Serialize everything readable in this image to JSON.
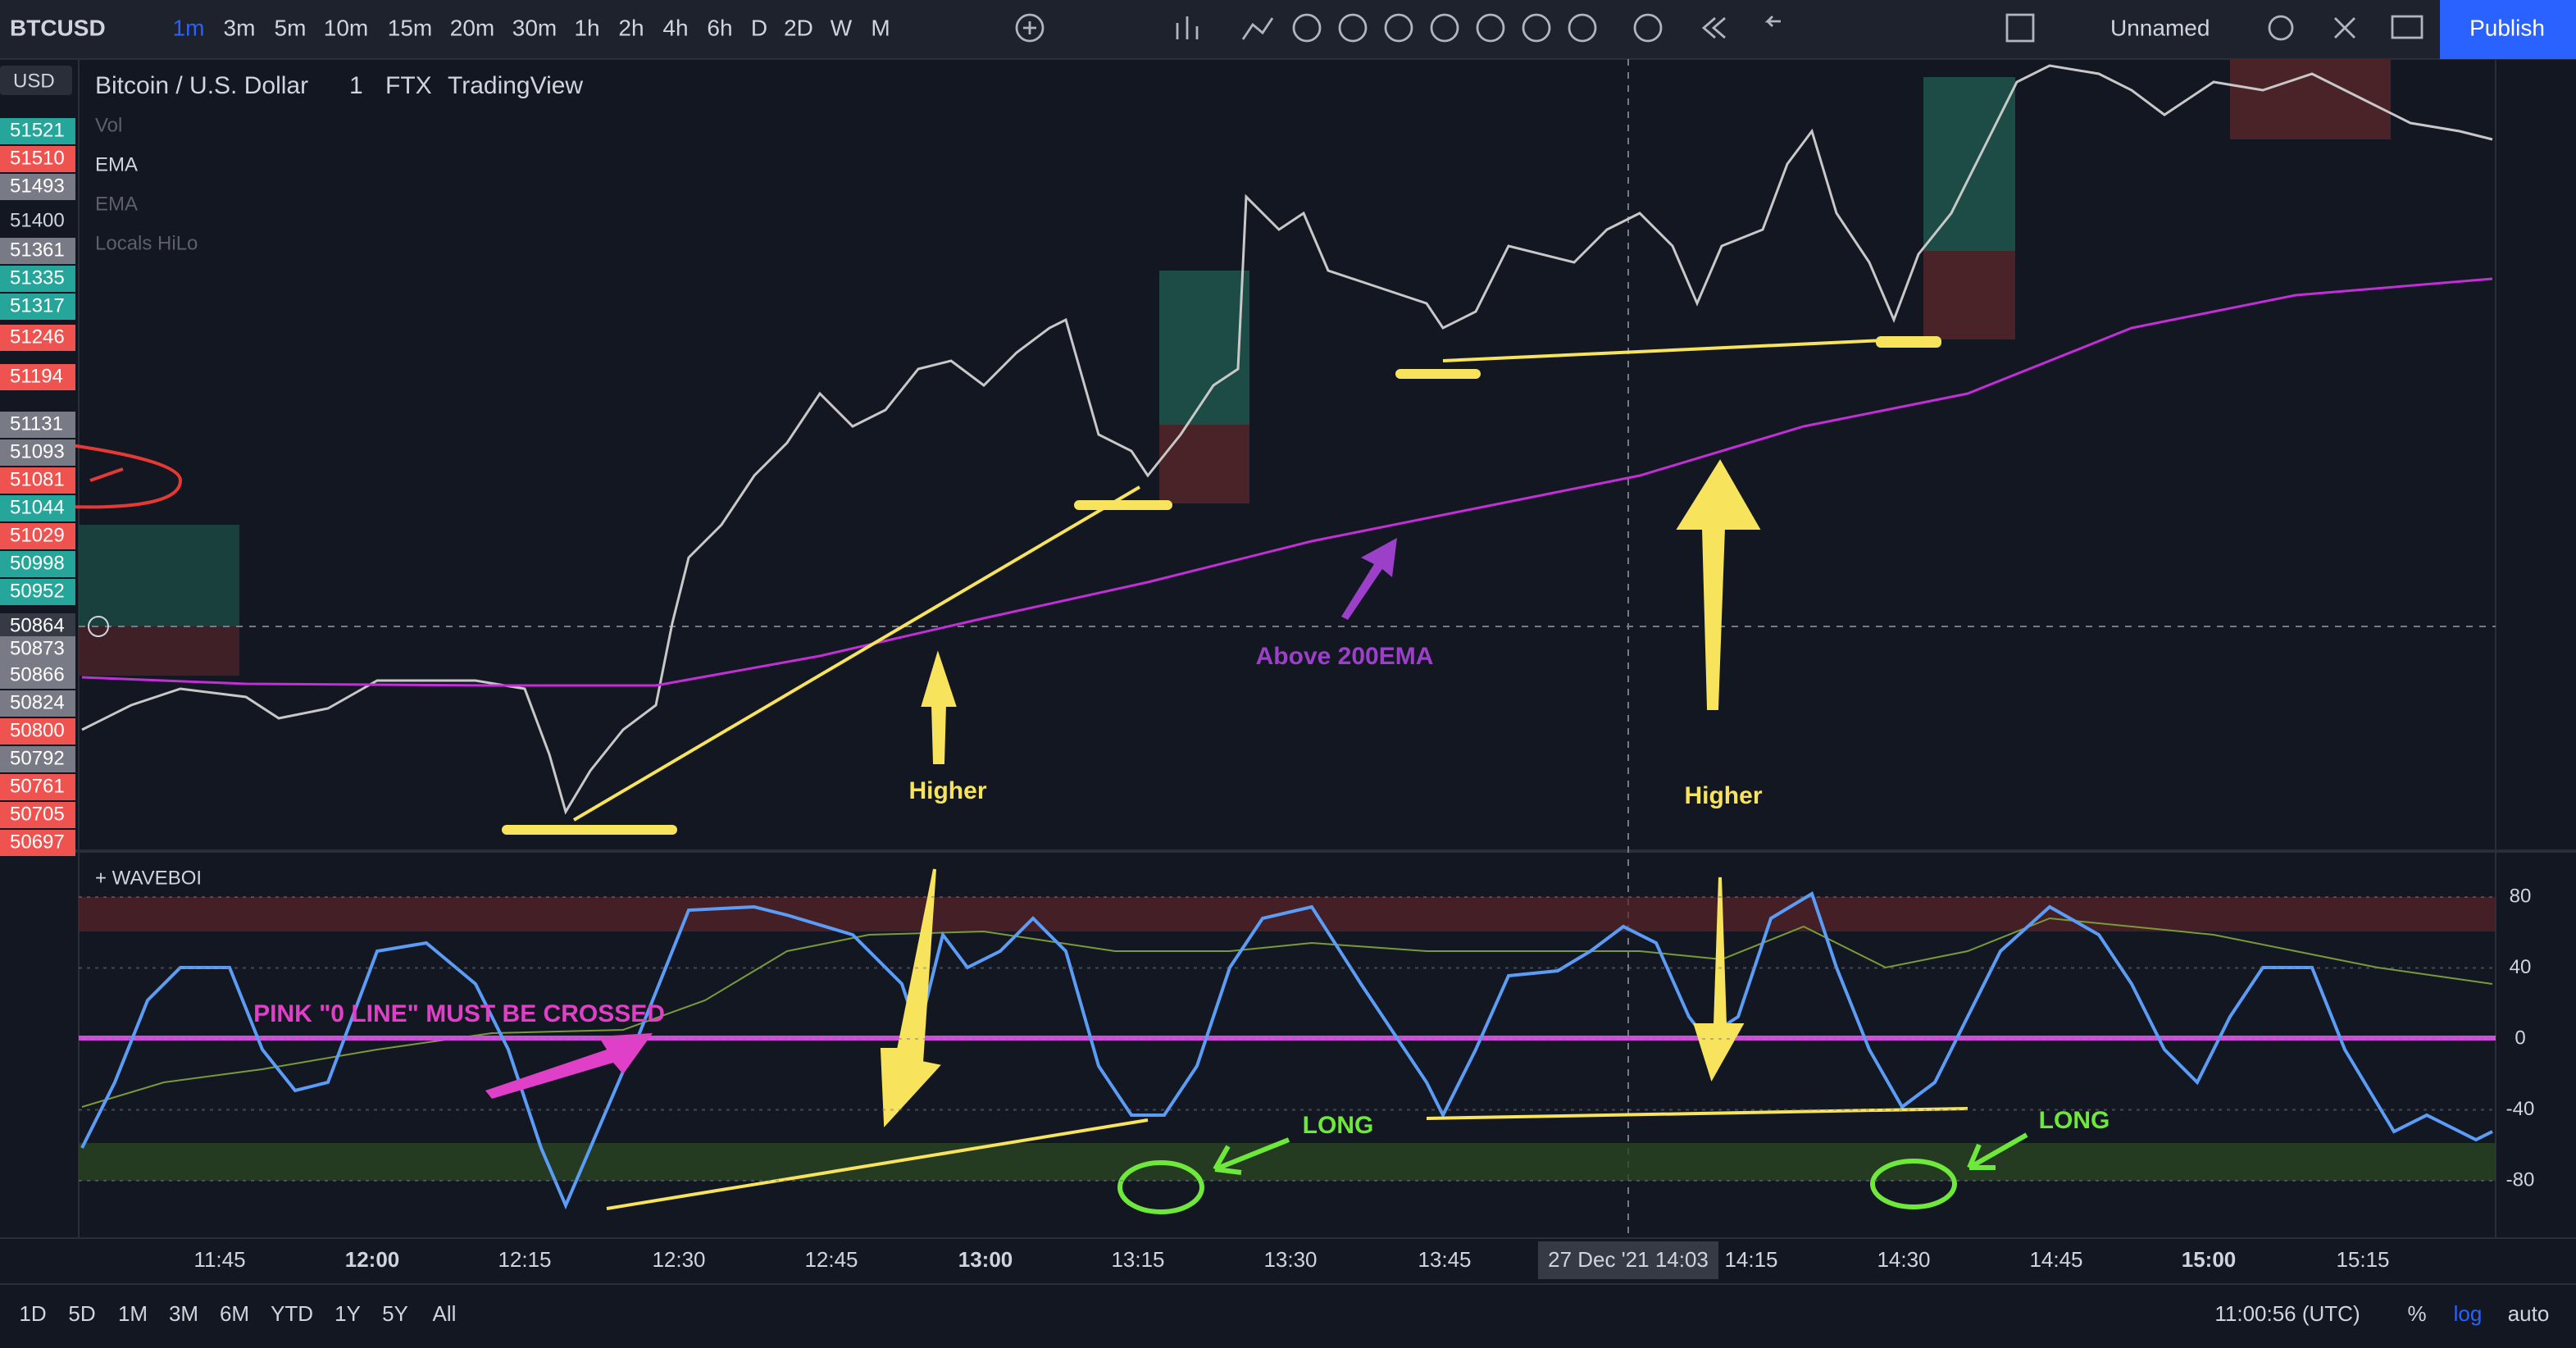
{
  "toolbar": {
    "symbol": "BTCUSD",
    "intervals": [
      "1m",
      "3m",
      "5m",
      "10m",
      "15m",
      "20m",
      "30m",
      "1h",
      "2h",
      "4h",
      "6h",
      "D",
      "2D",
      "W",
      "M"
    ],
    "layout_name": "Unnamed",
    "publish": "Publish"
  },
  "legend": {
    "title": "Bitcoin / U.S. Dollar",
    "interval": "1",
    "exchange": "FTX",
    "source": "TradingView",
    "indicators": [
      "Vol",
      "EMA",
      "EMA",
      "Locals HiLo"
    ]
  },
  "price_scale": {
    "currency": "USD",
    "labels": [
      {
        "text": "51521",
        "color": "#26a69a"
      },
      {
        "text": "51510",
        "color": "#ef5350"
      },
      {
        "text": "51493",
        "color": "#787b86"
      },
      {
        "text": "51400",
        "color": "#131722"
      },
      {
        "text": "51361",
        "color": "#787b86"
      },
      {
        "text": "51335",
        "color": "#26a69a"
      },
      {
        "text": "51317",
        "color": "#26a69a"
      },
      {
        "text": "51246",
        "color": "#ef5350"
      },
      {
        "text": "51194",
        "color": "#ef5350"
      },
      {
        "text": "51131",
        "color": "#787b86"
      },
      {
        "text": "51093",
        "color": "#787b86"
      },
      {
        "text": "51081",
        "color": "#ef5350"
      },
      {
        "text": "51044",
        "color": "#26a69a"
      },
      {
        "text": "51029",
        "color": "#ef5350"
      },
      {
        "text": "50998",
        "color": "#26a69a"
      },
      {
        "text": "50952",
        "color": "#26a69a"
      },
      {
        "text": "50864",
        "color": "#363a45"
      },
      {
        "text": "50873",
        "color": "#787b86"
      },
      {
        "text": "50866",
        "color": "#787b86"
      },
      {
        "text": "50824",
        "color": "#787b86"
      },
      {
        "text": "50800",
        "color": "#ef5350"
      },
      {
        "text": "50792",
        "color": "#787b86"
      },
      {
        "text": "50761",
        "color": "#ef5350"
      },
      {
        "text": "50705",
        "color": "#ef5350"
      },
      {
        "text": "50697",
        "color": "#ef5350"
      }
    ]
  },
  "annotations": [
    "Above 200EMA",
    "Higher",
    "Higher",
    "PINK \"0 LINE\" MUST BE CROSSED",
    "LONG",
    "LONG"
  ],
  "oscillator": {
    "name": "+ WAVEBOI",
    "ticks": [
      80,
      40,
      0,
      -40,
      -80
    ]
  },
  "time_axis": {
    "labels": [
      "11:45",
      "12:00",
      "12:15",
      "12:30",
      "12:45",
      "13:00",
      "13:15",
      "13:30",
      "13:45",
      "14:15",
      "14:30",
      "14:45",
      "15:00",
      "15:15"
    ],
    "crosshair": "27 Dec '21   14:03"
  },
  "bottom_bar": {
    "ranges": [
      "1D",
      "5D",
      "1M",
      "3M",
      "6M",
      "YTD",
      "1Y",
      "5Y",
      "All"
    ],
    "clock": "11:00:56 (UTC)",
    "percent": "%",
    "log": "log",
    "auto": "auto"
  }
}
